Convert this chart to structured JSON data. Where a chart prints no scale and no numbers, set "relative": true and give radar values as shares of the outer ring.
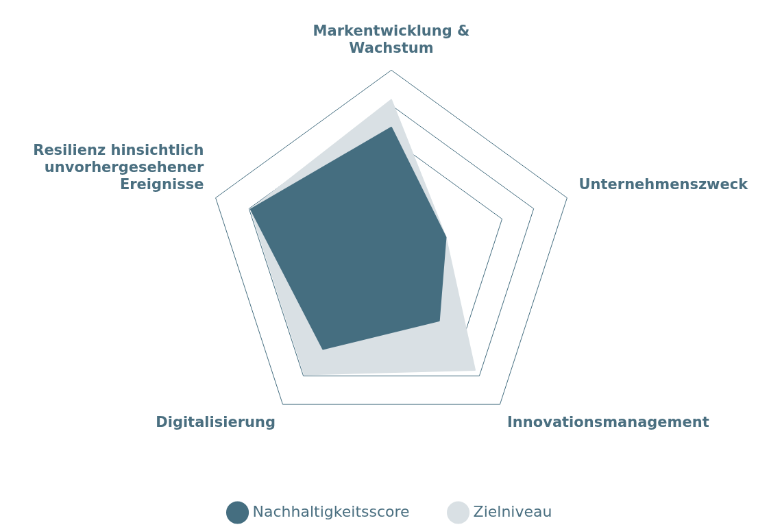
{
  "chart_data": {
    "type": "radar",
    "relative": true,
    "grid": true,
    "legend": "bottom",
    "categories": [
      "Markentwicklung & Wachstum",
      "Unternehmenszweck",
      "Innovationsmanagement",
      "Digitalisierung",
      "Resilienz hinsichtlich unvorhergesehener Ereignisse"
    ],
    "series": [
      {
        "name": "Nachhaltigkeitsscore",
        "color": "#456e80",
        "values": [
          0.69,
          0.31,
          0.44,
          0.63,
          0.8
        ]
      },
      {
        "name": "Zielniveau",
        "color": "#d9e0e4",
        "values": [
          0.84,
          0.31,
          0.77,
          0.8,
          0.8
        ]
      }
    ]
  }
}
